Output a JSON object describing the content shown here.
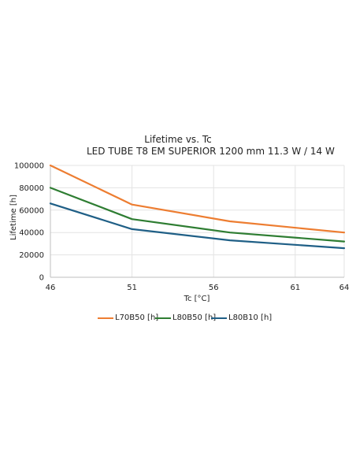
{
  "chart_data": {
    "type": "line",
    "title": "Lifetime vs. Tc",
    "subtitle": "LED TUBE T8 EM SUPERIOR 1200 mm 11.3 W / 14 W",
    "xlabel": "Tc [°C]",
    "ylabel": "Lifetime [h]",
    "x": [
      46,
      51,
      57,
      64
    ],
    "xticks": [
      46,
      51,
      56,
      61,
      64
    ],
    "xlim": [
      46,
      64
    ],
    "yticks": [
      0,
      20000,
      40000,
      60000,
      80000,
      100000
    ],
    "ylim": [
      0,
      100000
    ],
    "grid": true,
    "legend_position": "bottom",
    "series": [
      {
        "name": "L70B50 [h]",
        "color": "#ed7d31",
        "values": [
          100000,
          65000,
          50000,
          40000
        ]
      },
      {
        "name": "L80B50 [h]",
        "color": "#2e7d32",
        "values": [
          80000,
          52000,
          40000,
          32000
        ]
      },
      {
        "name": "L80B10 [h]",
        "color": "#1f5f86",
        "values": [
          66000,
          43000,
          33000,
          26000
        ]
      }
    ]
  }
}
